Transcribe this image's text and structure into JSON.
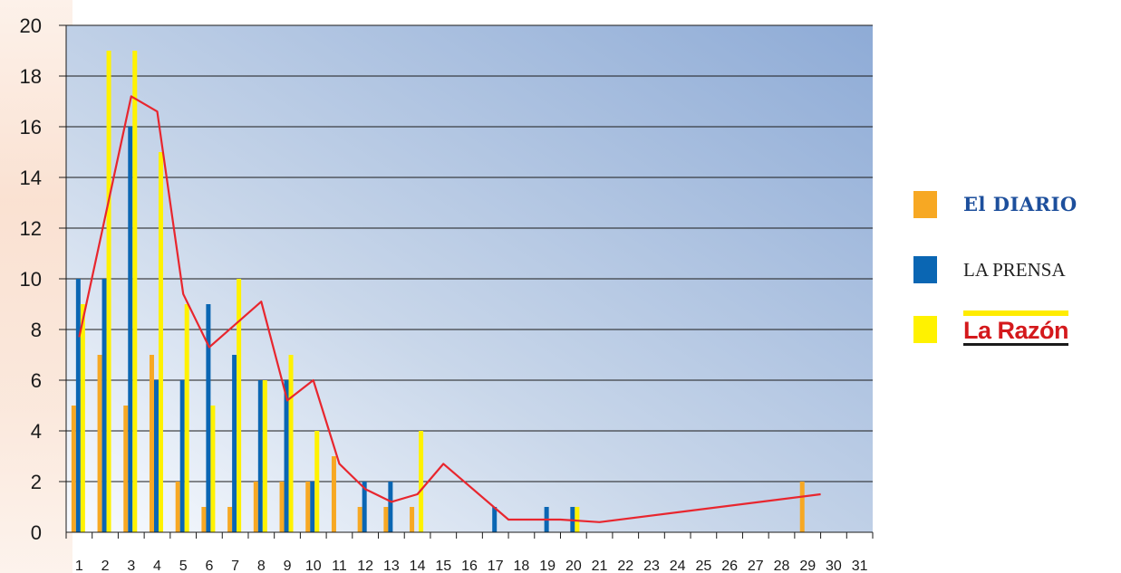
{
  "chart_data": {
    "type": "bar",
    "title": "",
    "xlabel": "",
    "ylabel": "",
    "ylim": [
      0,
      20
    ],
    "y_ticks": [
      0,
      2,
      4,
      6,
      8,
      10,
      12,
      14,
      16,
      18,
      20
    ],
    "categories": [
      "1",
      "2",
      "3",
      "4",
      "5",
      "6",
      "7",
      "8",
      "9",
      "10",
      "11",
      "12",
      "13",
      "14",
      "15",
      "16",
      "17",
      "18",
      "19",
      "20",
      "21",
      "22",
      "23",
      "24",
      "25",
      "26",
      "27",
      "28",
      "29",
      "30",
      "31"
    ],
    "series": [
      {
        "name": "El Diario",
        "color": "#f7a823",
        "values": [
          5,
          7,
          5,
          7,
          2,
          1,
          1,
          2,
          2,
          2,
          3,
          1,
          1,
          1,
          0,
          0,
          0,
          0,
          0,
          0,
          0,
          0,
          0,
          0,
          0,
          0,
          0,
          0,
          2,
          0,
          0
        ]
      },
      {
        "name": "La Prensa",
        "color": "#0a66b3",
        "values": [
          10,
          10,
          16,
          6,
          6,
          9,
          7,
          6,
          6,
          2,
          0,
          2,
          2,
          0,
          0,
          0,
          1,
          0,
          1,
          1,
          0,
          0,
          0,
          0,
          0,
          0,
          0,
          0,
          0,
          0,
          0
        ]
      },
      {
        "name": "La Razón",
        "color": "#fff200",
        "values": [
          9,
          19,
          19,
          15,
          9,
          5,
          10,
          6,
          7,
          4,
          0,
          0,
          0,
          4,
          0,
          0,
          0,
          0,
          0,
          1,
          0,
          0,
          0,
          0,
          0,
          0,
          0,
          0,
          0,
          0,
          0
        ]
      }
    ],
    "trend_line": {
      "color": "#e8262e",
      "points": [
        [
          0.5,
          7.7
        ],
        [
          2.5,
          17.2
        ],
        [
          3.5,
          16.6
        ],
        [
          4.5,
          9.4
        ],
        [
          5.5,
          7.3
        ],
        [
          7.5,
          9.1
        ],
        [
          8.5,
          5.2
        ],
        [
          9.5,
          6
        ],
        [
          10.5,
          2.7
        ],
        [
          11.5,
          1.7
        ],
        [
          12.5,
          1.2
        ],
        [
          13.5,
          1.5
        ],
        [
          14.5,
          2.7
        ],
        [
          17,
          0.5
        ],
        [
          19,
          0.5
        ],
        [
          20.5,
          0.4
        ],
        [
          29,
          1.5
        ]
      ]
    },
    "grid": true,
    "legend_position": "right"
  },
  "legend": {
    "eldiario": {
      "label": "El DIARIO",
      "color": "#f7a823"
    },
    "laprensa": {
      "label": "LA PRENSA",
      "color": "#0a66b3"
    },
    "larazon": {
      "label": "La Razón",
      "color": "#fff200"
    }
  }
}
